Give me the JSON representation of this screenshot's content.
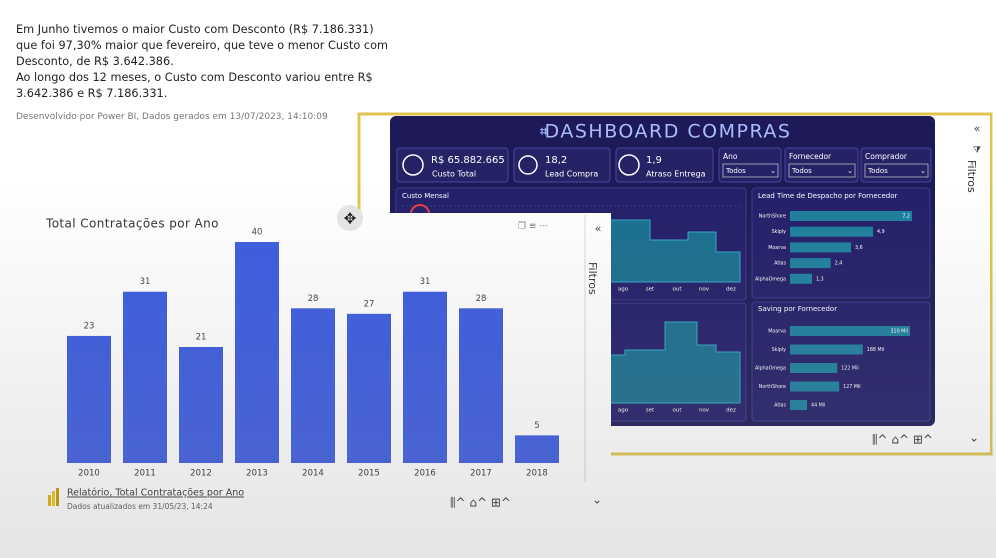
{
  "summary": {
    "paragraphs": [
      "Em Junho tivemos o maior Custo com Desconto (R$ 7.186.331)  que foi 97,30% maior que fevereiro, que teve o menor Custo com Desconto, de R$ 3.642.386.",
      "Ao longo dos 12 meses, o Custo com Desconto variou entre R$ 3.642.386 e R$ 7.186.331."
    ],
    "footer": "Desenvolvido por Power BI, Dados gerados em 13/07/2023, 14:10:09"
  },
  "report_caption": {
    "title": "Relatório, Total Contratações por Ano",
    "updated": "Dados atualizados em 31/05/23, 14:24"
  },
  "filter_pane": {
    "label": "Filtros"
  },
  "dashboard": {
    "title": "DASHBOARD COMPRAS",
    "kpis": [
      {
        "value": "R$ 65.882.665",
        "label": "Custo Total"
      },
      {
        "value": "18,2",
        "label": "Lead Compra"
      },
      {
        "value": "1,9",
        "label": "Atraso Entrega"
      }
    ],
    "slicers": [
      {
        "label": "Ano",
        "value": "Todos"
      },
      {
        "label": "Fornecedor",
        "value": "Todos"
      },
      {
        "label": "Comprador",
        "value": "Todos"
      }
    ],
    "custo_mensal": {
      "title": "Custo Mensal",
      "months": [
        "ago",
        "set",
        "out",
        "nov",
        "dez"
      ]
    }
  },
  "chart_data": [
    {
      "type": "bar",
      "title": "Total Contratações por Ano",
      "categories": [
        "2010",
        "2011",
        "2012",
        "2013",
        "2014",
        "2015",
        "2016",
        "2017",
        "2018"
      ],
      "values": [
        23,
        31,
        21,
        40,
        28,
        27,
        31,
        28,
        5
      ],
      "color": "#3d5ce0"
    },
    {
      "type": "hbar",
      "title": "Lead Time de Despacho por Fornecedor",
      "categories": [
        "NorthShore",
        "Skiply",
        "Moarva",
        "Atlas",
        "AlphaOmega"
      ],
      "values": [
        7.2,
        4.9,
        3.6,
        2.4,
        1.3
      ],
      "value_labels": [
        "7,2",
        "4,9",
        "3,6",
        "2,4",
        "1,3"
      ],
      "color": "#1f7f9e"
    },
    {
      "type": "hbar",
      "title": "Saving por Fornecedor",
      "categories": [
        "Moarva",
        "Skiply",
        "AlphaOmega",
        "NorthShore",
        "Atlas"
      ],
      "values": [
        310000,
        188000,
        122000,
        127000,
        44000
      ],
      "value_labels": [
        "310 Mil",
        "188 Mil",
        "122 Mil",
        "127 Mil",
        "44 Mil"
      ],
      "color": "#1f7f9e"
    }
  ]
}
